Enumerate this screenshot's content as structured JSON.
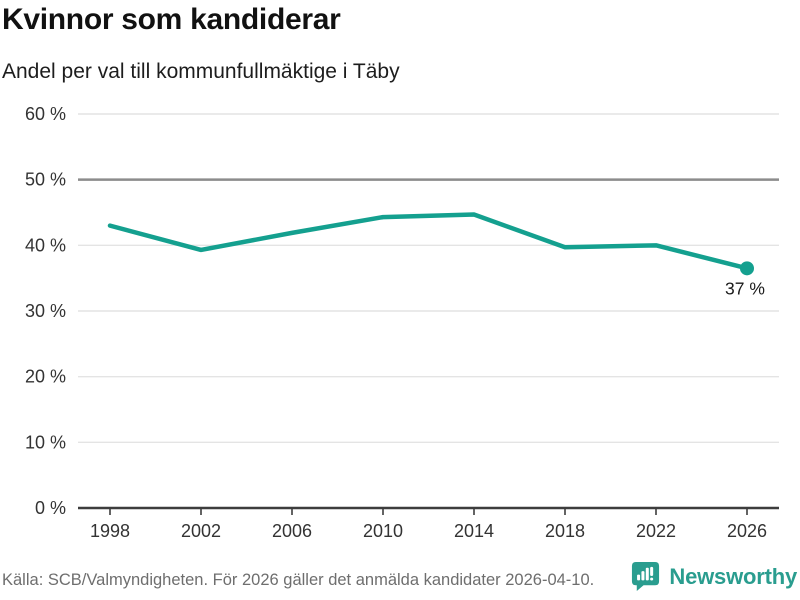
{
  "chart_data": {
    "type": "line",
    "title": "Kvinnor som kandiderar",
    "subtitle": "Andel per val till kommunfullmäktige i Täby",
    "x": [
      1998,
      2002,
      2006,
      2010,
      2014,
      2018,
      2022,
      2026
    ],
    "values": [
      43.0,
      39.3,
      41.9,
      44.3,
      44.7,
      39.7,
      40.0,
      36.5
    ],
    "ylim": [
      0,
      60
    ],
    "ytick_step": 10,
    "ytick_suffix": " %",
    "grid": true,
    "legend": "none",
    "reference_gridline": 50,
    "end_point_label": "37 %",
    "source": "Källa: SCB/Valmyndigheten. För 2026 gäller det anmälda kandidater 2026-04-10."
  },
  "brand": {
    "name": "Newsworthy"
  },
  "colors": {
    "line": "#14a08f",
    "brand_teal": "#2a9d8f",
    "grid": "#e4e4e4",
    "reference_line": "#8c8c8c",
    "axis": "#3d3d3d",
    "text_axis": "#333333",
    "text_dark": "#1a1a1a"
  }
}
